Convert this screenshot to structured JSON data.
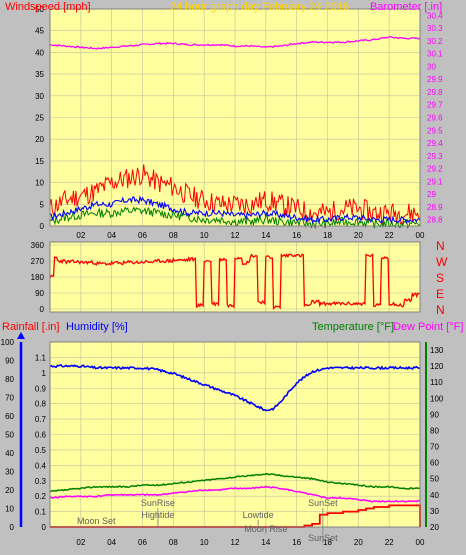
{
  "colors": {
    "background": "#c0c0c0",
    "plot_bg": "#ffffa0",
    "wind": "#ff0000",
    "gust_mid": "#0000ff",
    "gust_low": "#008000",
    "barometer": "#ff00ff",
    "humidity": "#0000ff",
    "rain": "#ff0000",
    "temperature": "#008000",
    "dewpoint": "#ff00ff",
    "title": "#ffd700",
    "grid": "#c0c0a0"
  },
  "chart_data": [
    {
      "type": "line",
      "title": "24 hour graph day   February 24 2016",
      "left_label": "Windspeed [mph]",
      "right_label": "Barometer [.in]",
      "x_ticks": [
        "02",
        "04",
        "06",
        "08",
        "10",
        "12",
        "14",
        "16",
        "18",
        "20",
        "22",
        "00"
      ],
      "y_left_ticks": [
        "0",
        "5",
        "10",
        "15",
        "20",
        "25",
        "30",
        "35",
        "40",
        "45",
        "50"
      ],
      "y_left_range": [
        0,
        50
      ],
      "y_right_ticks": [
        "28.8",
        "28.9",
        "29",
        "29.1",
        "29.2",
        "29.3",
        "29.4",
        "29.5",
        "29.6",
        "29.7",
        "29.8",
        "29.9",
        "30",
        "30.1",
        "30.2",
        "30.3",
        "30.4"
      ],
      "y_right_range": [
        28.75,
        30.45
      ],
      "series": [
        {
          "name": "Barometer",
          "axis": "right",
          "x": [
            0,
            1,
            2,
            3,
            4,
            5,
            6,
            7,
            8,
            9,
            10,
            11,
            12,
            13,
            14,
            15,
            16,
            17,
            18,
            19,
            20,
            21,
            22,
            23,
            24
          ],
          "values": [
            30.17,
            30.16,
            30.15,
            30.14,
            30.15,
            30.16,
            30.17,
            30.18,
            30.18,
            30.17,
            30.17,
            30.17,
            30.16,
            30.16,
            30.15,
            30.16,
            30.18,
            30.19,
            30.19,
            30.19,
            30.2,
            30.21,
            30.23,
            30.22,
            30.22
          ]
        },
        {
          "name": "Wind gust",
          "axis": "left",
          "x": [
            0,
            1,
            2,
            3,
            4,
            5,
            6,
            7,
            8,
            9,
            10,
            11,
            12,
            13,
            14,
            15,
            16,
            17,
            18,
            19,
            20,
            21,
            22,
            23,
            24
          ],
          "values": [
            4,
            6,
            7,
            8,
            10,
            11,
            12,
            10,
            9,
            7,
            6,
            5,
            5,
            5,
            6,
            5,
            4,
            3,
            3,
            4,
            4,
            3,
            3,
            3,
            3
          ]
        },
        {
          "name": "Wind average",
          "axis": "left",
          "x": [
            0,
            1,
            2,
            3,
            4,
            5,
            6,
            7,
            8,
            9,
            10,
            11,
            12,
            13,
            14,
            15,
            16,
            17,
            18,
            19,
            20,
            21,
            22,
            23,
            24
          ],
          "values": [
            2,
            3,
            4,
            5,
            5,
            6,
            6,
            5,
            4,
            3,
            3,
            3,
            2.5,
            2.5,
            3,
            2.5,
            2,
            1.5,
            1.5,
            2,
            2,
            1.5,
            1.5,
            1.5,
            1.5
          ]
        },
        {
          "name": "Wind low",
          "axis": "left",
          "x": [
            0,
            1,
            2,
            3,
            4,
            5,
            6,
            7,
            8,
            9,
            10,
            11,
            12,
            13,
            14,
            15,
            16,
            17,
            18,
            19,
            20,
            21,
            22,
            23,
            24
          ],
          "values": [
            1,
            2,
            2.5,
            3,
            3,
            3.5,
            3.5,
            3,
            2.5,
            2,
            1.5,
            1.5,
            1,
            1,
            1.5,
            1,
            0.8,
            0.5,
            0.5,
            1,
            1,
            0.5,
            0.5,
            0.5,
            0.5
          ]
        }
      ]
    },
    {
      "type": "line",
      "left_ticks": [
        "0",
        "90",
        "180",
        "270",
        "360"
      ],
      "y_range": [
        0,
        360
      ],
      "right_labels": [
        "N",
        "W",
        "S",
        "E",
        "N"
      ],
      "series": [
        {
          "name": "Wind direction",
          "x": [
            0,
            0.3,
            0.5,
            1,
            2,
            3,
            4,
            5,
            6,
            7,
            8,
            9,
            9.5,
            10,
            10.5,
            11,
            11.5,
            12,
            12.5,
            13,
            13.5,
            14,
            14.5,
            15,
            15.5,
            16,
            16.5,
            17,
            17.5,
            18,
            18.5,
            19,
            19.5,
            20,
            20.5,
            21,
            21.5,
            22,
            22.5,
            23,
            23.5,
            24
          ],
          "values": [
            180,
            290,
            270,
            265,
            262,
            255,
            258,
            262,
            265,
            270,
            275,
            280,
            20,
            270,
            30,
            280,
            20,
            290,
            260,
            300,
            40,
            290,
            10,
            300,
            305,
            300,
            20,
            40,
            30,
            30,
            30,
            30,
            30,
            30,
            300,
            20,
            290,
            30,
            20,
            50,
            80,
            85
          ]
        }
      ]
    },
    {
      "type": "line",
      "left_label": "Rainfall [.in]",
      "left_label2": "Humidity [%]",
      "right_label": "Temperature [°F]",
      "right_label2": "Dew Point [°F]",
      "x_ticks": [
        "02",
        "04",
        "06",
        "08",
        "10",
        "12",
        "14",
        "16",
        "18",
        "20",
        "22",
        "00"
      ],
      "y_left_ticks": [
        "0",
        "0.1",
        "0.2",
        "0.3",
        "0.4",
        "0.5",
        "0.6",
        "0.7",
        "0.8",
        "0.9",
        "1",
        "1.1"
      ],
      "y_left_range": [
        0,
        1.2
      ],
      "y_far_left_ticks": [
        "0",
        "10",
        "20",
        "30",
        "40",
        "50",
        "60",
        "70",
        "80",
        "90",
        "100"
      ],
      "y_right_ticks": [
        "20",
        "30",
        "40",
        "50",
        "60",
        "70",
        "80",
        "90",
        "100",
        "110",
        "120",
        "130"
      ],
      "y_right_range": [
        20,
        135
      ],
      "events": [
        {
          "label": "Moon Set",
          "x": 3
        },
        {
          "label": "SunRise",
          "x": 7
        },
        {
          "label": "Hightide",
          "x": 7
        },
        {
          "label": "Lowtide",
          "x": 13.5
        },
        {
          "label": "Moon Rise",
          "x": 14
        },
        {
          "label": "SunSet",
          "x": 17.7
        },
        {
          "label": "SunSet",
          "x": 17.7
        }
      ],
      "series": [
        {
          "name": "Humidity",
          "axis": "far_left",
          "x": [
            0,
            1,
            2,
            3,
            4,
            5,
            6,
            7,
            8,
            9,
            10,
            11,
            12,
            13,
            14,
            14.5,
            15,
            16,
            17,
            18,
            19,
            20,
            21,
            22,
            23,
            24
          ],
          "values": [
            87,
            87,
            87,
            86,
            86,
            86,
            86,
            85,
            83,
            80,
            77,
            74,
            71,
            67,
            63,
            64,
            68,
            78,
            84,
            86,
            86,
            86,
            86,
            86,
            86,
            86
          ]
        },
        {
          "name": "Temperature",
          "axis": "right",
          "x": [
            0,
            1,
            2,
            3,
            4,
            5,
            6,
            7,
            8,
            9,
            10,
            11,
            12,
            13,
            14,
            15,
            16,
            17,
            18,
            19,
            20,
            21,
            22,
            23,
            24
          ],
          "values": [
            42,
            43,
            44,
            45,
            45,
            45,
            46,
            46,
            47,
            48,
            49,
            50,
            51,
            52,
            53,
            52,
            51,
            50,
            48,
            47,
            46,
            45,
            45,
            44,
            44
          ]
        },
        {
          "name": "Dew Point",
          "axis": "right",
          "x": [
            0,
            1,
            2,
            3,
            4,
            5,
            6,
            7,
            8,
            9,
            10,
            11,
            12,
            13,
            14,
            15,
            16,
            17,
            18,
            19,
            20,
            21,
            22,
            23,
            24
          ],
          "values": [
            38,
            39,
            39,
            39,
            40,
            40,
            40,
            40,
            41,
            42,
            43,
            43,
            44,
            44,
            45,
            44,
            42,
            40,
            38,
            38,
            37,
            36,
            36,
            36,
            36
          ]
        },
        {
          "name": "Rainfall",
          "axis": "left",
          "x": [
            0,
            6,
            10,
            16,
            16.5,
            17,
            17.5,
            18,
            19,
            20,
            20.5,
            21,
            22,
            23,
            23.5,
            24
          ],
          "values": [
            0,
            0,
            0,
            0,
            0.01,
            0.02,
            0.08,
            0.09,
            0.1,
            0.11,
            0.12,
            0.13,
            0.14,
            0.14,
            0.14,
            0
          ]
        }
      ]
    }
  ]
}
